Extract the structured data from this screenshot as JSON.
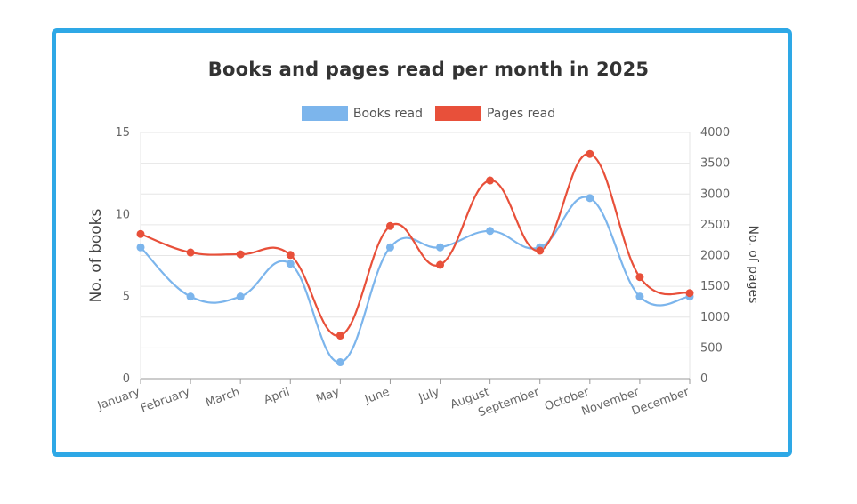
{
  "chart_data": {
    "type": "line",
    "title": "Books and pages read per month in 2025",
    "categories": [
      "January",
      "February",
      "March",
      "April",
      "May",
      "June",
      "July",
      "August",
      "September",
      "October",
      "November",
      "December"
    ],
    "series": [
      {
        "name": "Books read",
        "axis": "left",
        "color": "#7cb5ec",
        "values": [
          8,
          5,
          5,
          7,
          1,
          8,
          8,
          9,
          8,
          11,
          5,
          5
        ]
      },
      {
        "name": "Pages read",
        "axis": "right",
        "color": "#e8503a",
        "values": [
          2350,
          2050,
          2020,
          2010,
          700,
          2480,
          1850,
          3220,
          2080,
          3650,
          1650,
          1390
        ]
      }
    ],
    "y_left": {
      "label": "No. of books",
      "min": 0,
      "max": 15,
      "ticks": [
        0,
        5,
        10,
        15
      ]
    },
    "y_right": {
      "label": "No. of pages",
      "min": 0,
      "max": 4000,
      "ticks": [
        0,
        500,
        1000,
        1500,
        2000,
        2500,
        3000,
        3500,
        4000
      ]
    },
    "grid": true,
    "legend_position": "top-center"
  },
  "colors": {
    "frame": "#2ea8e6",
    "grid": "#e6e6e6"
  }
}
